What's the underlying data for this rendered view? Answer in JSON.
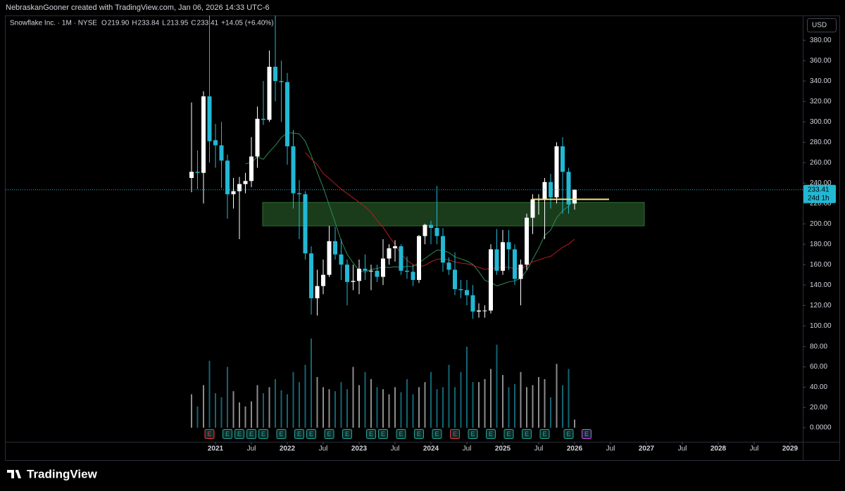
{
  "chart_data": {
    "type": "candlestick",
    "header": "NebraskanGooner created with TradingView.com, Jan 06, 2026 14:33 UTC-6",
    "symbol": "Snowflake Inc. · 1M · NYSE",
    "ohlc_legend": [
      {
        "label": "O",
        "value": "219.90"
      },
      {
        "label": "H",
        "value": "233.84"
      },
      {
        "label": "L",
        "value": "213.95"
      },
      {
        "label": "C",
        "value": "233.41"
      }
    ],
    "change": "+14.05 (+6.40%)",
    "currency": "USD",
    "countdown": "24d 1h",
    "brand": "TradingView",
    "up_color": "#ffffff",
    "down_color": "#22b8d4",
    "x": [
      "2020-09",
      "2020-10",
      "2020-11",
      "2020-12",
      "2021-01",
      "2021-02",
      "2021-03",
      "2021-04",
      "2021-05",
      "2021-06",
      "2021-07",
      "2021-08",
      "2021-09",
      "2021-10",
      "2021-11",
      "2021-12",
      "2022-01",
      "2022-02",
      "2022-03",
      "2022-04",
      "2022-05",
      "2022-06",
      "2022-07",
      "2022-08",
      "2022-09",
      "2022-10",
      "2022-11",
      "2022-12",
      "2023-01",
      "2023-02",
      "2023-03",
      "2023-04",
      "2023-05",
      "2023-06",
      "2023-07",
      "2023-08",
      "2023-09",
      "2023-10",
      "2023-11",
      "2023-12",
      "2024-01",
      "2024-02",
      "2024-03",
      "2024-04",
      "2024-05",
      "2024-06",
      "2024-07",
      "2024-08",
      "2024-09",
      "2024-10",
      "2024-11",
      "2024-12",
      "2025-01",
      "2025-02",
      "2025-03",
      "2025-04",
      "2025-05",
      "2025-06",
      "2025-07",
      "2025-08",
      "2025-09",
      "2025-10",
      "2025-11",
      "2025-12",
      "2026-01"
    ],
    "open": [
      245,
      251,
      250,
      325,
      282,
      277,
      262,
      229,
      232,
      239,
      242,
      266,
      303,
      302,
      354,
      340,
      339,
      276,
      230,
      229,
      171,
      127,
      139,
      150,
      183,
      170,
      160,
      143,
      144,
      156,
      154,
      154,
      148,
      166,
      176,
      178,
      154,
      153,
      145,
      188,
      199,
      196,
      188,
      162,
      155,
      136,
      135,
      130,
      114,
      115,
      115,
      175,
      154,
      182,
      175,
      146,
      160,
      206,
      224,
      224,
      241,
      226,
      276,
      251,
      219.9
    ],
    "high": [
      319,
      272,
      330,
      429,
      298,
      300,
      268,
      245,
      246,
      250,
      285,
      315,
      340,
      370,
      405,
      360,
      348,
      292,
      243,
      232,
      178,
      155,
      165,
      198,
      197,
      185,
      165,
      160,
      165,
      170,
      160,
      160,
      185,
      180,
      184,
      180,
      168,
      160,
      189,
      200,
      203,
      237,
      196,
      167,
      172,
      145,
      145,
      140,
      122,
      120,
      180,
      195,
      194,
      194,
      180,
      165,
      210,
      229,
      229,
      245,
      249,
      280,
      285,
      255,
      233.84
    ],
    "low": [
      231,
      234,
      220,
      260,
      255,
      235,
      205,
      215,
      185,
      230,
      236,
      255,
      297,
      300,
      320,
      300,
      258,
      215,
      185,
      165,
      111,
      110,
      131,
      148,
      165,
      145,
      120,
      135,
      131,
      145,
      135,
      143,
      140,
      160,
      163,
      150,
      146,
      139,
      142,
      180,
      180,
      180,
      153,
      150,
      130,
      127,
      120,
      107,
      108,
      108,
      112,
      150,
      150,
      155,
      140,
      120,
      155,
      190,
      209,
      185,
      215,
      220,
      210,
      210,
      213.95
    ],
    "close": [
      251,
      250,
      325,
      281,
      277,
      262,
      229,
      232,
      239,
      242,
      266,
      303,
      302,
      354,
      340,
      339,
      276,
      230,
      229,
      171,
      127,
      139,
      150,
      183,
      170,
      160,
      143,
      144,
      156,
      154,
      154,
      148,
      166,
      176,
      178,
      154,
      153,
      145,
      188,
      199,
      196,
      188,
      162,
      155,
      136,
      135,
      130,
      114,
      115,
      115,
      175,
      154,
      182,
      175,
      146,
      160,
      206,
      224,
      224,
      241,
      226,
      276,
      251,
      219,
      233.41
    ],
    "volume": [
      33,
      21,
      42,
      66,
      34,
      30,
      60,
      36,
      25,
      21,
      26,
      42,
      34,
      40,
      48,
      37,
      33,
      55,
      45,
      62,
      88,
      50,
      40,
      38,
      36,
      45,
      38,
      60,
      42,
      55,
      48,
      40,
      38,
      33,
      40,
      35,
      48,
      33,
      40,
      45,
      55,
      38,
      40,
      62,
      40,
      55,
      80,
      45,
      45,
      48,
      58,
      82,
      52,
      40,
      43,
      55,
      40,
      42,
      50,
      48,
      30,
      63,
      42,
      58,
      8
    ],
    "ylim": [
      88.4,
      404.3
    ],
    "yticks": [
      {
        "value": 100,
        "label": "100.00"
      },
      {
        "value": 120,
        "label": "120.00"
      },
      {
        "value": 140,
        "label": "140.00"
      },
      {
        "value": 160,
        "label": "160.00"
      },
      {
        "value": 180,
        "label": "180.00"
      },
      {
        "value": 200,
        "label": "200.00"
      },
      {
        "value": 220,
        "label": "220.00"
      },
      {
        "value": 240,
        "label": "240.00"
      },
      {
        "value": 260,
        "label": "260.00"
      },
      {
        "value": 280,
        "label": "280.00"
      },
      {
        "value": 300,
        "label": "300.00"
      },
      {
        "value": 320,
        "label": "320.00"
      },
      {
        "value": 340,
        "label": "340.00"
      },
      {
        "value": 360,
        "label": "360.00"
      },
      {
        "value": 380,
        "label": "380.00"
      }
    ],
    "volume_lim": [
      0,
      100
    ],
    "volume_ticks": [
      {
        "value": 0,
        "label": "0.0000"
      },
      {
        "value": 20,
        "label": "20.00"
      },
      {
        "value": 40,
        "label": "40.00"
      },
      {
        "value": 60,
        "label": "60.00"
      },
      {
        "value": 80,
        "label": "80.00"
      }
    ],
    "xticks": [
      {
        "value": "2021-01",
        "label": "2021"
      },
      {
        "value": "2021-07",
        "label": "Jul"
      },
      {
        "value": "2022-01",
        "label": "2022"
      },
      {
        "value": "2022-07",
        "label": "Jul"
      },
      {
        "value": "2023-01",
        "label": "2023"
      },
      {
        "value": "2023-07",
        "label": "Jul"
      },
      {
        "value": "2024-01",
        "label": "2024"
      },
      {
        "value": "2024-07",
        "label": "Jul"
      },
      {
        "value": "2025-01",
        "label": "2025"
      },
      {
        "value": "2025-07",
        "label": "Jul"
      },
      {
        "value": "2026-01",
        "label": "2026"
      },
      {
        "value": "2026-07",
        "label": "Jul"
      },
      {
        "value": "2027-01",
        "label": "2027"
      },
      {
        "value": "2027-07",
        "label": "Jul"
      },
      {
        "value": "2028-01",
        "label": "2028"
      },
      {
        "value": "2028-07",
        "label": "Jul"
      },
      {
        "value": "2029-01",
        "label": "2029"
      }
    ],
    "moving_averages": [
      {
        "period": 10,
        "color": "#2e8b57"
      },
      {
        "period": 20,
        "color": "#b71c1c"
      }
    ],
    "zone": {
      "low": 198,
      "high": 221,
      "color": "#1e4620"
    },
    "level": {
      "value": 224,
      "color": "#f3e47a"
    },
    "earnings": [
      {
        "month": "2020-12",
        "label": "E",
        "color": "#f23645"
      },
      {
        "month": "2021-03",
        "label": "E",
        "color": "#26a69a"
      },
      {
        "month": "2021-05",
        "label": "E",
        "color": "#26a69a"
      },
      {
        "month": "2021-07",
        "label": "E",
        "color": "#26a69a"
      },
      {
        "month": "2021-09",
        "label": "E",
        "color": "#26a69a"
      },
      {
        "month": "2021-12",
        "label": "E",
        "color": "#26a69a"
      },
      {
        "month": "2022-03",
        "label": "E",
        "color": "#26a69a"
      },
      {
        "month": "2022-05",
        "label": "E",
        "color": "#26a69a"
      },
      {
        "month": "2022-08",
        "label": "E",
        "color": "#26a69a"
      },
      {
        "month": "2022-11",
        "label": "E",
        "color": "#26a69a"
      },
      {
        "month": "2023-03",
        "label": "E",
        "color": "#26a69a"
      },
      {
        "month": "2023-05",
        "label": "E",
        "color": "#26a69a"
      },
      {
        "month": "2023-08",
        "label": "E",
        "color": "#26a69a"
      },
      {
        "month": "2023-11",
        "label": "E",
        "color": "#26a69a"
      },
      {
        "month": "2024-02",
        "label": "E",
        "color": "#26a69a"
      },
      {
        "month": "2024-05",
        "label": "E",
        "color": "#f23645"
      },
      {
        "month": "2024-08",
        "label": "E",
        "color": "#26a69a"
      },
      {
        "month": "2024-11",
        "label": "E",
        "color": "#26a69a"
      },
      {
        "month": "2025-02",
        "label": "E",
        "color": "#26a69a"
      },
      {
        "month": "2025-05",
        "label": "E",
        "color": "#26a69a"
      },
      {
        "month": "2025-08",
        "label": "E",
        "color": "#26a69a"
      },
      {
        "month": "2025-12",
        "label": "E",
        "color": "#26a69a"
      },
      {
        "month": "2026-03",
        "label": "E",
        "color": "#e040fb"
      }
    ]
  }
}
